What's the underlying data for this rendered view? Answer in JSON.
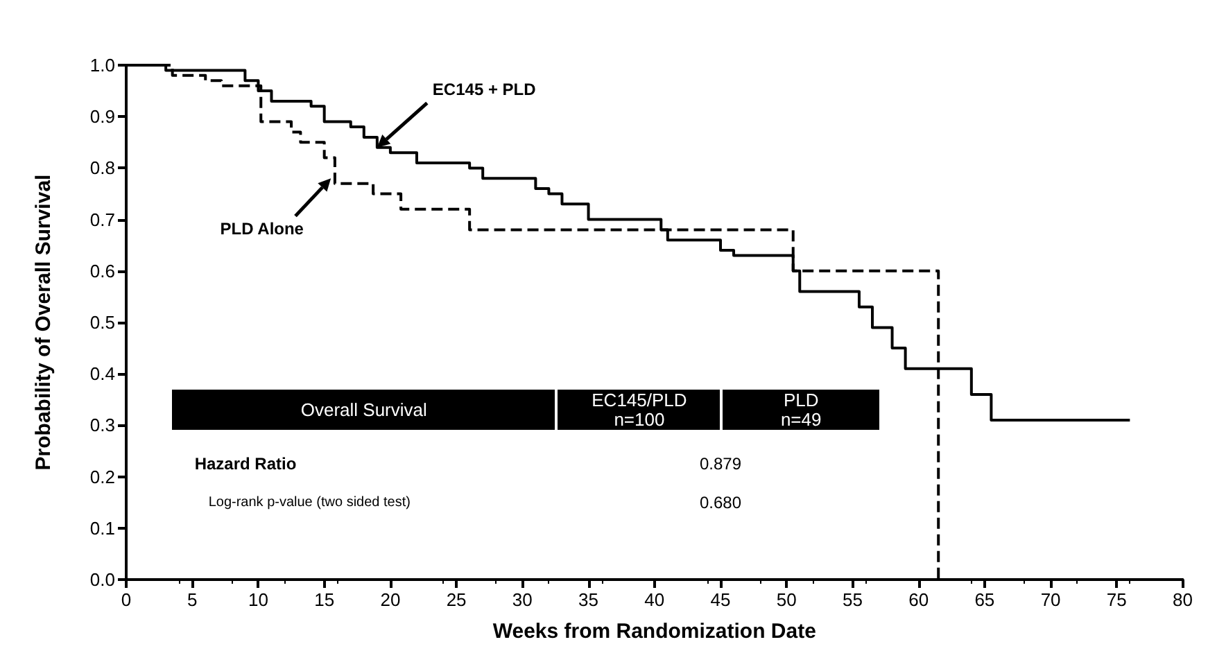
{
  "chart_data": {
    "type": "step",
    "xlabel": "Weeks from Randomization Date",
    "ylabel": "Probability of Overall Survival",
    "xlim": [
      0,
      80
    ],
    "xticks": [
      0,
      5,
      10,
      15,
      20,
      25,
      30,
      35,
      40,
      45,
      50,
      55,
      60,
      65,
      70,
      75,
      80
    ],
    "ylim": [
      0,
      1
    ],
    "yticks": [
      {
        "value": 0,
        "label": "0.0"
      },
      0.1,
      0.2,
      0.3,
      0.4,
      0.5,
      0.6,
      0.7,
      0.8,
      0.9,
      {
        "value": 1,
        "label": "1.0"
      }
    ],
    "grid": false,
    "marker": "none",
    "series": [
      {
        "color": "#000000",
        "line_style": "solid",
        "x": [
          0,
          3,
          9,
          10,
          11,
          14,
          15,
          17,
          18,
          19,
          20,
          22,
          26,
          27,
          31,
          32,
          33,
          35,
          40.5,
          41,
          45,
          46,
          50.5,
          51,
          55.5,
          56.5,
          58,
          59,
          64,
          65.5,
          76
        ],
        "values": [
          1,
          0.99,
          0.97,
          0.95,
          0.93,
          0.92,
          0.89,
          0.88,
          0.86,
          0.84,
          0.83,
          0.81,
          0.8,
          0.78,
          0.76,
          0.75,
          0.73,
          0.7,
          0.68,
          0.66,
          0.64,
          0.63,
          0.6,
          0.56,
          0.53,
          0.49,
          0.45,
          0.41,
          0.36,
          0.31,
          0.31
        ]
      },
      {
        "color": "#000000",
        "line_style": "dashed",
        "x": [
          0,
          3.5,
          6,
          7.2,
          10.2,
          12.5,
          13.2,
          15,
          15.8,
          18.7,
          20.8,
          26,
          50.5,
          61.5
        ],
        "values": [
          1,
          0.98,
          0.97,
          0.96,
          0.89,
          0.87,
          0.85,
          0.82,
          0.77,
          0.75,
          0.72,
          0.68,
          0.6,
          0
        ]
      }
    ],
    "annotations": [
      {
        "text": "EC145 + PLD",
        "x": 19,
        "y": 0.84
      },
      {
        "text": "PLD Alone",
        "x": 15.5,
        "y": 0.78
      },
      "Overall Survival",
      "EC145/PLD\nn=100",
      "PLD\nn=49",
      "Hazard Ratio",
      "0.879",
      "Log-rank p-value (two sided test)",
      "0.680"
    ]
  }
}
